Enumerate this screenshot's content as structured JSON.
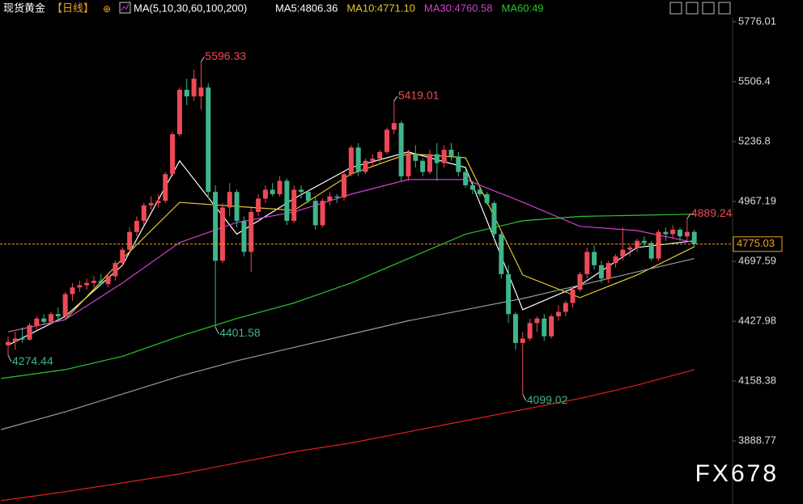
{
  "chart_data": {
    "type": "candlestick",
    "title": "现货黄金",
    "period": "【日线】",
    "indicator": "MA(5,10,30,60,100,200)",
    "up_color": "#ee4a55",
    "down_color": "#3fb58a",
    "candles": [
      [
        4320,
        4360,
        4274.44,
        4335
      ],
      [
        4335,
        4380,
        4300,
        4350
      ],
      [
        4350,
        4400,
        4330,
        4345
      ],
      [
        4345,
        4420,
        4340,
        4410
      ],
      [
        4410,
        4450,
        4390,
        4440
      ],
      [
        4440,
        4460,
        4410,
        4425
      ],
      [
        4425,
        4470,
        4415,
        4460
      ],
      [
        4460,
        4490,
        4430,
        4450
      ],
      [
        4450,
        4560,
        4440,
        4550
      ],
      [
        4550,
        4600,
        4520,
        4580
      ],
      [
        4580,
        4610,
        4560,
        4590
      ],
      [
        4590,
        4620,
        4570,
        4600
      ],
      [
        4600,
        4630,
        4580,
        4610
      ],
      [
        4610,
        4640,
        4590,
        4595
      ],
      [
        4595,
        4640,
        4580,
        4630
      ],
      [
        4630,
        4700,
        4610,
        4690
      ],
      [
        4690,
        4760,
        4680,
        4750
      ],
      [
        4750,
        4850,
        4740,
        4830
      ],
      [
        4830,
        4900,
        4810,
        4880
      ],
      [
        4880,
        4960,
        4860,
        4950
      ],
      [
        4950,
        4990,
        4930,
        4960
      ],
      [
        4960,
        5000,
        4940,
        4970
      ],
      [
        4970,
        5100,
        4960,
        5090
      ],
      [
        5090,
        5280,
        5080,
        5270
      ],
      [
        5270,
        5480,
        5260,
        5470
      ],
      [
        5470,
        5520,
        5400,
        5440
      ],
      [
        5440,
        5560,
        5420,
        5520
      ],
      [
        5440,
        5596.33,
        5380,
        5480
      ],
      [
        5480,
        5500,
        4980,
        5010
      ],
      [
        5010,
        5040,
        4401.58,
        4700
      ],
      [
        4700,
        4960,
        4690,
        4940
      ],
      [
        4940,
        5050,
        4900,
        5010
      ],
      [
        5010,
        5020,
        4850,
        4880
      ],
      [
        4880,
        4900,
        4720,
        4740
      ],
      [
        4740,
        4940,
        4650,
        4920
      ],
      [
        4920,
        5000,
        4900,
        4980
      ],
      [
        4980,
        5040,
        4960,
        5020
      ],
      [
        5020,
        5050,
        4990,
        5000
      ],
      [
        5000,
        5080,
        4990,
        5060
      ],
      [
        5060,
        5070,
        4860,
        4880
      ],
      [
        4880,
        5040,
        4870,
        5020
      ],
      [
        5020,
        5040,
        4980,
        5010
      ],
      [
        5010,
        5020,
        4960,
        4970
      ],
      [
        4970,
        4990,
        4840,
        4860
      ],
      [
        4860,
        4980,
        4850,
        4970
      ],
      [
        4970,
        5010,
        4950,
        4990
      ],
      [
        4990,
        5000,
        4960,
        4985
      ],
      [
        4985,
        5100,
        4970,
        5090
      ],
      [
        5090,
        5220,
        5080,
        5210
      ],
      [
        5210,
        5230,
        5080,
        5100
      ],
      [
        5100,
        5160,
        5090,
        5150
      ],
      [
        5150,
        5180,
        5120,
        5160
      ],
      [
        5160,
        5200,
        5140,
        5190
      ],
      [
        5190,
        5300,
        5180,
        5290
      ],
      [
        5290,
        5419.01,
        5270,
        5320
      ],
      [
        5320,
        5330,
        5060,
        5080
      ],
      [
        5080,
        5200,
        5060,
        5180
      ],
      [
        5180,
        5220,
        5120,
        5150
      ],
      [
        5150,
        5160,
        5080,
        5100
      ],
      [
        5100,
        5200,
        5090,
        5180
      ],
      [
        5180,
        5230,
        5060,
        5140
      ],
      [
        5140,
        5220,
        5120,
        5200
      ],
      [
        5200,
        5230,
        5150,
        5170
      ],
      [
        5170,
        5190,
        5080,
        5100
      ],
      [
        5100,
        5110,
        5030,
        5040
      ],
      [
        5040,
        5060,
        5000,
        5020
      ],
      [
        5020,
        5030,
        4990,
        5000
      ],
      [
        5000,
        5010,
        4950,
        4960
      ],
      [
        4960,
        4970,
        4800,
        4820
      ],
      [
        4820,
        4830,
        4620,
        4640
      ],
      [
        4640,
        4680,
        4420,
        4460
      ],
      [
        4460,
        4470,
        4300,
        4330
      ],
      [
        4330,
        4380,
        4099.02,
        4350
      ],
      [
        4350,
        4440,
        4340,
        4420
      ],
      [
        4420,
        4450,
        4380,
        4440
      ],
      [
        4440,
        4460,
        4340,
        4360
      ],
      [
        4360,
        4460,
        4350,
        4450
      ],
      [
        4450,
        4500,
        4430,
        4470
      ],
      [
        4470,
        4520,
        4450,
        4510
      ],
      [
        4510,
        4580,
        4490,
        4570
      ],
      [
        4570,
        4650,
        4560,
        4640
      ],
      [
        4640,
        4760,
        4620,
        4740
      ],
      [
        4740,
        4770,
        4660,
        4680
      ],
      [
        4680,
        4700,
        4600,
        4620
      ],
      [
        4620,
        4700,
        4600,
        4690
      ],
      [
        4690,
        4730,
        4670,
        4720
      ],
      [
        4720,
        4850,
        4700,
        4750
      ],
      [
        4750,
        4770,
        4720,
        4760
      ],
      [
        4760,
        4800,
        4740,
        4790
      ],
      [
        4790,
        4810,
        4760,
        4780
      ],
      [
        4780,
        4790,
        4700,
        4710
      ],
      [
        4710,
        4840,
        4700,
        4830
      ],
      [
        4830,
        4850,
        4790,
        4820
      ],
      [
        4820,
        4860,
        4800,
        4840
      ],
      [
        4840,
        4850,
        4790,
        4810
      ],
      [
        4810,
        4889.24,
        4790,
        4830
      ],
      [
        4830,
        4840,
        4760,
        4775.03
      ]
    ],
    "series": [
      {
        "name": "MA5:4806.36",
        "color": "#ffffff",
        "x": [
          0,
          8,
          16,
          24,
          32,
          40,
          48,
          56,
          64,
          72,
          80,
          88,
          96
        ],
        "values": [
          4320,
          4450,
          4680,
          5150,
          4820,
          4980,
          5120,
          5190,
          5120,
          4480,
          4590,
          4760,
          4790
        ]
      },
      {
        "name": "MA10:4771.10",
        "color": "#e6c72a",
        "x": [
          0,
          8,
          16,
          24,
          32,
          40,
          48,
          56,
          64,
          72,
          80,
          88,
          96
        ],
        "values": [
          4380,
          4435,
          4709,
          4963,
          4945,
          4927,
          5091,
          5182,
          5164,
          4636,
          4534,
          4636,
          4763
        ]
      },
      {
        "name": "MA30:4760.58",
        "color": "#d23fd2",
        "x": [
          0,
          8,
          16,
          24,
          32,
          40,
          48,
          56,
          64,
          72,
          80,
          88,
          96
        ],
        "values": [
          4380,
          4435,
          4600,
          4782,
          4873,
          4920,
          5000,
          5066,
          5066,
          4964,
          4855,
          4836,
          4782
        ]
      },
      {
        "name": "MA60:49",
        "color": "#2fc42f",
        "x": [
          -1,
          8,
          16,
          24,
          32,
          40,
          48,
          56,
          64,
          72,
          80,
          88,
          96
        ],
        "values": [
          4170,
          4210,
          4270,
          4360,
          4440,
          4510,
          4600,
          4710,
          4820,
          4880,
          4900,
          4905,
          4910
        ]
      },
      {
        "color": "#9a9a9a",
        "x": [
          -1,
          8,
          16,
          24,
          32,
          40,
          48,
          56,
          64,
          72,
          80,
          88,
          96
        ],
        "values": [
          3940,
          4020,
          4100,
          4180,
          4250,
          4310,
          4370,
          4430,
          4480,
          4530,
          4590,
          4650,
          4710
        ]
      },
      {
        "color": "#e02020",
        "x": [
          -1,
          8,
          16,
          24,
          32,
          40,
          48,
          56,
          64,
          72,
          80,
          88,
          96
        ],
        "values": [
          3620,
          3660,
          3700,
          3740,
          3790,
          3840,
          3880,
          3930,
          3980,
          4030,
          4080,
          4140,
          4210
        ]
      }
    ],
    "ylim": [
      3605,
      5794
    ],
    "yticks": [
      5776.01,
      5506.4,
      5236.8,
      4967.19,
      4697.59,
      4427.98,
      4158.38,
      3888.77
    ],
    "annotations": [
      5596.33,
      5419.01,
      4889.24,
      4401.58,
      4099.02,
      4274.44
    ],
    "last_price_color": "#f0a020",
    "watermark": "FX678"
  }
}
